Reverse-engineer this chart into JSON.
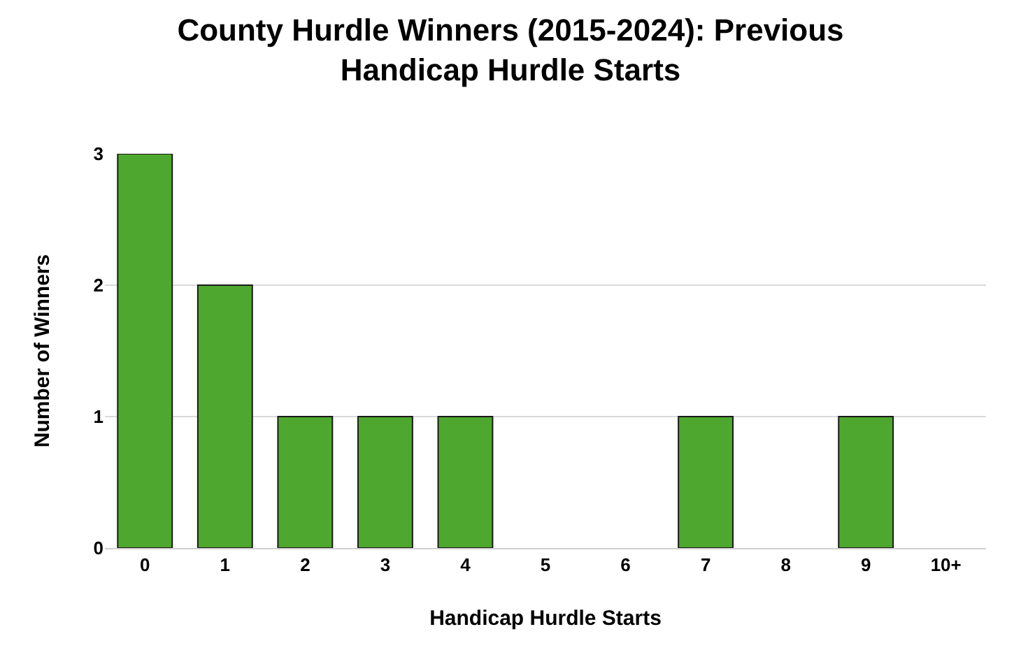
{
  "chart_data": {
    "type": "bar",
    "title": "County Hurdle Winners (2015-2024): Previous Handicap Hurdle Starts",
    "xlabel": "Handicap Hurdle Starts",
    "ylabel": "Number of Winners",
    "categories": [
      "0",
      "1",
      "2",
      "3",
      "4",
      "5",
      "6",
      "7",
      "8",
      "9",
      "10+"
    ],
    "values": [
      3,
      2,
      1,
      1,
      1,
      0,
      0,
      1,
      0,
      1,
      0
    ],
    "color": "#4ea72e",
    "ylim": [
      0,
      3
    ],
    "yticks": [
      0,
      1,
      2,
      3
    ],
    "grid": "y",
    "legend": false
  }
}
